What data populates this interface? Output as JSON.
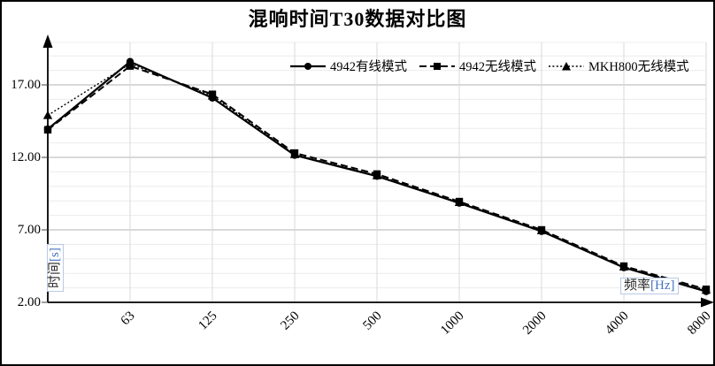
{
  "chart_data": {
    "type": "line",
    "title": "混响时间T30数据对比图",
    "xlabel": "频率[Hz]",
    "ylabel": "时间[s]",
    "xlabel_parts": {
      "name": "频率",
      "unit": "[Hz]"
    },
    "ylabel_parts": {
      "name": "时间",
      "unit": "[s]"
    },
    "categories": [
      "",
      "63",
      "125",
      "250",
      "500",
      "1000",
      "2000",
      "4000",
      "8000"
    ],
    "series": [
      {
        "name": "4942有线模式",
        "line": "solid",
        "marker": "circle",
        "color": "#000000",
        "values": [
          13.95,
          18.6,
          16.1,
          12.15,
          10.7,
          8.85,
          6.9,
          4.4,
          2.75
        ]
      },
      {
        "name": "4942无线模式",
        "line": "dashed",
        "marker": "square",
        "color": "#000000",
        "values": [
          13.9,
          18.3,
          16.35,
          12.3,
          10.85,
          8.95,
          7.0,
          4.5,
          2.9
        ]
      },
      {
        "name": "MKH800无线模式",
        "line": "dotted",
        "marker": "triangle",
        "color": "#000000",
        "values": [
          14.9,
          18.45,
          16.25,
          12.2,
          10.75,
          8.9,
          6.95,
          4.45,
          2.85
        ]
      }
    ],
    "ylim": [
      2,
      19.8
    ],
    "yticks": [
      2,
      7,
      12,
      17
    ],
    "ytick_labels": [
      "2.00",
      "7.00",
      "12.00",
      "17.00"
    ],
    "y_major_unit": 5,
    "y_minor_unit": 1,
    "grid": true,
    "legend_position": "top-inside",
    "colors": {
      "series": "#000000",
      "major_grid": "#b3b3b3",
      "minor_grid": "#ececec",
      "vertical_grid": "#d9d9d9",
      "axis": "#000000",
      "unit_text": "#4472c4"
    }
  }
}
